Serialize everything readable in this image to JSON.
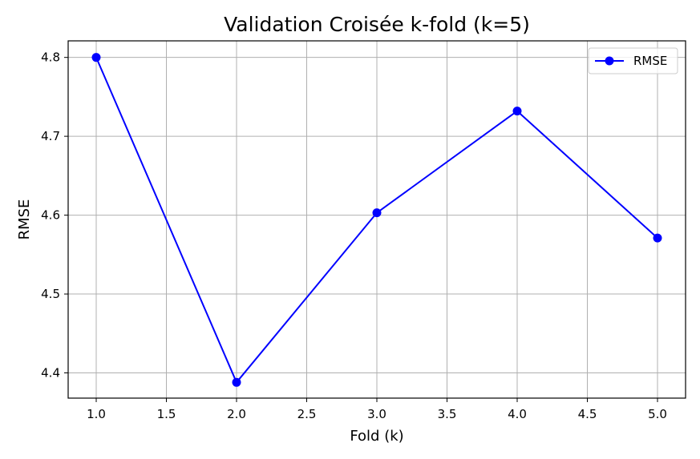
{
  "chart_data": {
    "type": "line",
    "title": "Validation Croisée k-fold (k=5)",
    "xlabel": "Fold (k)",
    "ylabel": "RMSE",
    "x": [
      1,
      2,
      3,
      4,
      5
    ],
    "series": [
      {
        "name": "RMSE",
        "values": [
          4.8,
          4.388,
          4.603,
          4.732,
          4.571
        ],
        "color": "#0000ff",
        "marker": "circle"
      }
    ],
    "xlim": [
      0.8,
      5.2
    ],
    "ylim": [
      4.368,
      4.821
    ],
    "xticks": [
      "1.0",
      "1.5",
      "2.0",
      "2.5",
      "3.0",
      "3.5",
      "4.0",
      "4.5",
      "5.0"
    ],
    "yticks": [
      "4.4",
      "4.5",
      "4.6",
      "4.7",
      "4.8"
    ],
    "grid": true,
    "legend_position": "top-right",
    "grid_color": "#b0b0b0"
  }
}
